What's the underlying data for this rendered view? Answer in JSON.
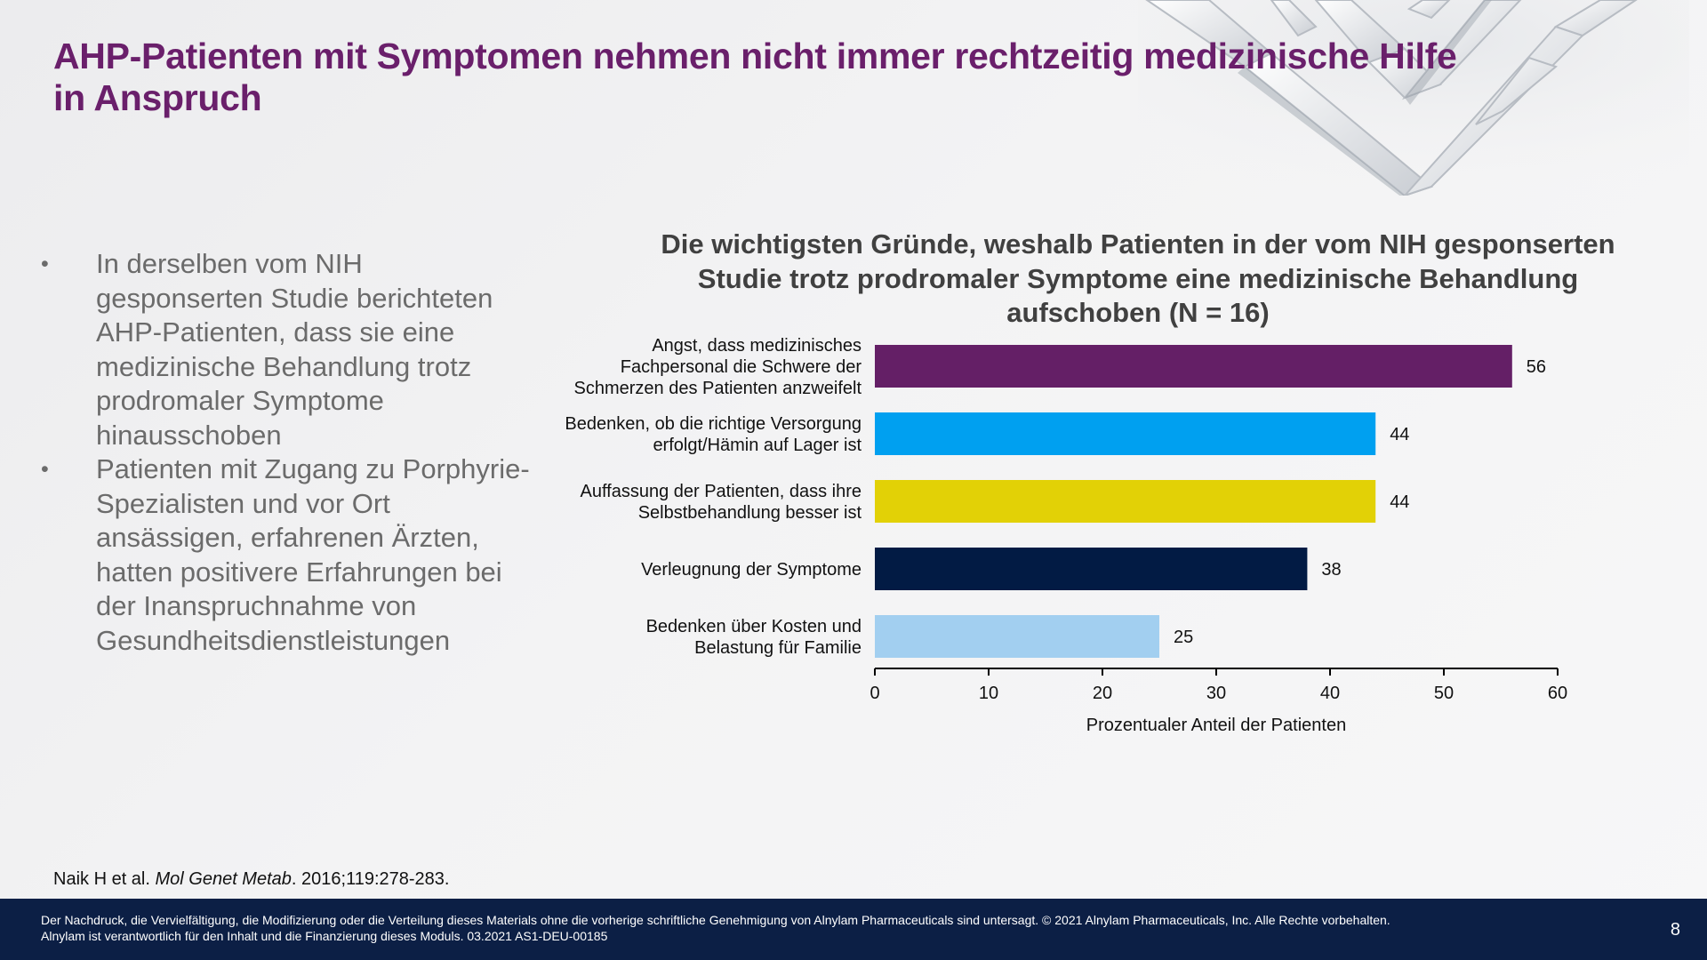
{
  "slide": {
    "title": "AHP-Patienten mit Symptomen nehmen nicht immer rechtzeitig medizinische Hilfe in Anspruch",
    "bullets": [
      "In derselben vom NIH gesponserten Studie berichteten AHP-Patienten, dass sie eine medizinische Behandlung trotz prodromaler Symptome hinausschoben",
      "Patienten mit Zugang zu Porphyrie-Spezialisten und vor Ort ansässigen, erfahrenen Ärzten, hatten positivere Erfahrungen bei der Inanspruchnahme von Gesundheitsdienstleistungen"
    ],
    "bullet_symbol": "•",
    "reference": {
      "authors": "Naik H et al. ",
      "journal": "Mol Genet Metab",
      "details": ". 2016;119:278-283."
    }
  },
  "footer": {
    "line1": "Der Nachdruck, die Vervielfältigung, die Modifizierung oder die Verteilung dieses Materials ohne die vorherige schriftliche Genehmigung von Alnylam Pharmaceuticals sind untersagt. © 2021 Alnylam Pharmaceuticals, Inc. Alle Rechte vorbehalten.",
    "line2": "Alnylam ist verantwortlich für den Inhalt und die Finanzierung dieses Moduls. 03.2021 AS1-DEU-00185",
    "page_number": "8",
    "background_color": "#0c1f45"
  },
  "colors": {
    "title": "#6a1f6b",
    "body_text": "#6b6b6b",
    "chart_title": "#404040"
  },
  "chart_data": {
    "type": "bar",
    "orientation": "horizontal",
    "title": "Die wichtigsten Gründe, weshalb Patienten in der vom NIH gesponserten Studie trotz prodromaler Symptome eine medizinische Behandlung aufschoben (N = 16)",
    "xlabel": "Prozentualer Anteil der Patienten",
    "ylabel": "",
    "xlim": [
      0,
      60
    ],
    "xticks": [
      0,
      10,
      20,
      30,
      40,
      50,
      60
    ],
    "grid": false,
    "legend": "none",
    "categories": [
      "Angst, dass medizinisches Fachpersonal die Schwere der Schmerzen des Patienten anzweifelt",
      "Bedenken, ob die richtige Versorgung erfolgt/Hämin auf Lager ist",
      "Auffassung der Patienten, dass ihre Selbstbehandlung besser ist",
      "Verleugnung der Symptome",
      "Bedenken über Kosten und Belastung für Familie"
    ],
    "category_lines": [
      [
        "Angst, dass medizinisches",
        "Fachpersonal die Schwere der",
        "Schmerzen des Patienten anzweifelt"
      ],
      [
        "Bedenken, ob die richtige Versorgung",
        "erfolgt/Hämin auf Lager ist"
      ],
      [
        "Auffassung der Patienten, dass ihre",
        "Selbstbehandlung besser ist"
      ],
      [
        "Verleugnung der Symptome"
      ],
      [
        "Bedenken über Kosten und",
        "Belastung für Familie"
      ]
    ],
    "values": [
      56,
      44,
      44,
      38,
      25
    ],
    "bar_colors": [
      "#641f66",
      "#00a0f0",
      "#e2d106",
      "#021b44",
      "#a2cff0"
    ]
  }
}
